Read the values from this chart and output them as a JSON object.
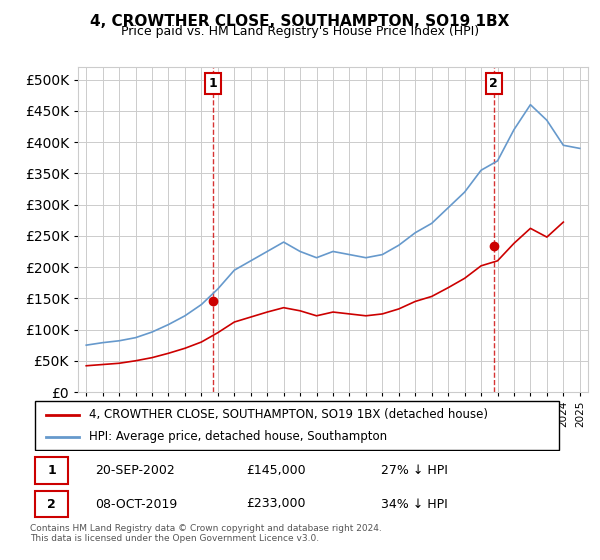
{
  "title": "4, CROWTHER CLOSE, SOUTHAMPTON, SO19 1BX",
  "subtitle": "Price paid vs. HM Land Registry's House Price Index (HPI)",
  "hpi_label": "HPI: Average price, detached house, Southampton",
  "property_label": "4, CROWTHER CLOSE, SOUTHAMPTON, SO19 1BX (detached house)",
  "footnote": "Contains HM Land Registry data © Crown copyright and database right 2024.\nThis data is licensed under the Open Government Licence v3.0.",
  "property_color": "#cc0000",
  "hpi_color": "#6699cc",
  "annotation1": {
    "label": "1",
    "date": "20-SEP-2002",
    "price": "£145,000",
    "note": "27% ↓ HPI"
  },
  "annotation2": {
    "label": "2",
    "date": "08-OCT-2019",
    "price": "£233,000",
    "note": "34% ↓ HPI"
  },
  "ylim": [
    0,
    520000
  ],
  "yticks": [
    0,
    50000,
    100000,
    150000,
    200000,
    250000,
    300000,
    350000,
    400000,
    450000,
    500000
  ],
  "hpi_years": [
    1995,
    1996,
    1997,
    1998,
    1999,
    2000,
    2001,
    2002,
    2003,
    2004,
    2005,
    2006,
    2007,
    2008,
    2009,
    2010,
    2011,
    2012,
    2013,
    2014,
    2015,
    2016,
    2017,
    2018,
    2019,
    2020,
    2021,
    2022,
    2023,
    2024,
    2025
  ],
  "hpi_values": [
    75000,
    79000,
    82000,
    87000,
    96000,
    108000,
    122000,
    140000,
    165000,
    195000,
    210000,
    225000,
    240000,
    225000,
    215000,
    225000,
    220000,
    215000,
    220000,
    235000,
    255000,
    270000,
    295000,
    320000,
    355000,
    370000,
    420000,
    460000,
    435000,
    395000,
    390000
  ],
  "prop_years": [
    1995,
    1996,
    1997,
    1998,
    1999,
    2000,
    2001,
    2002,
    2003,
    2004,
    2005,
    2006,
    2007,
    2008,
    2009,
    2010,
    2011,
    2012,
    2013,
    2014,
    2015,
    2016,
    2017,
    2018,
    2019,
    2020,
    2021,
    2022,
    2023,
    2024
  ],
  "prop_values": [
    42000,
    44000,
    46000,
    50000,
    55000,
    62000,
    70000,
    80000,
    95000,
    112000,
    120000,
    128000,
    135000,
    130000,
    122000,
    128000,
    125000,
    122000,
    125000,
    133000,
    145000,
    153000,
    167000,
    182000,
    202000,
    210000,
    238000,
    262000,
    248000,
    272000
  ],
  "sale1_x": 2002.72,
  "sale1_y": 145000,
  "sale2_x": 2019.77,
  "sale2_y": 233000,
  "xmin": 1994.5,
  "xmax": 2025.5
}
